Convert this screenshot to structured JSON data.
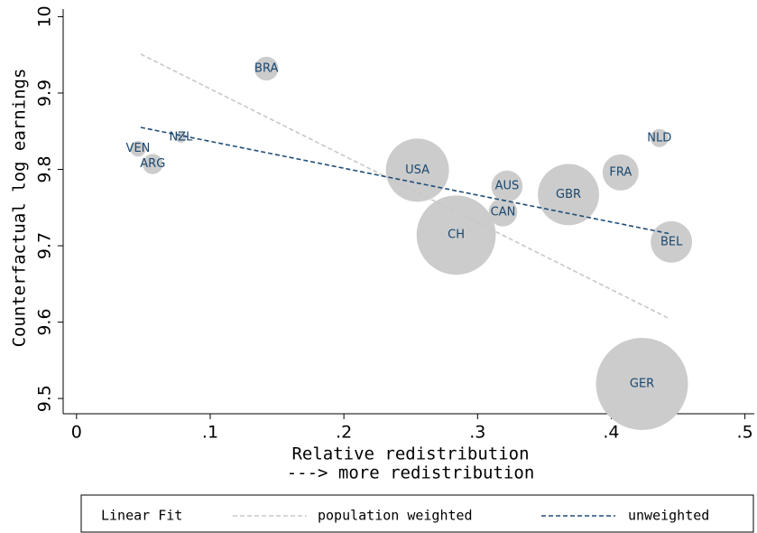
{
  "chart_data": {
    "type": "scatter",
    "ylabel": "Counterfactual log earnings",
    "xlabel": [
      "Relative redistribution",
      "---> more redistribution"
    ],
    "legend_title": "Linear Fit",
    "labels": [
      "BRA",
      "VEN",
      "NZL",
      "ARG",
      "USA",
      "AUS",
      "CAN",
      "CH",
      "GBR",
      "FRA",
      "NLD",
      "BEL",
      "GER"
    ],
    "x": [
      0.142,
      0.046,
      0.078,
      0.057,
      0.255,
      0.322,
      0.319,
      0.284,
      0.368,
      0.407,
      0.436,
      0.445,
      0.423
    ],
    "values": [
      9.932,
      9.827,
      9.842,
      9.807,
      9.799,
      9.778,
      9.744,
      9.714,
      9.767,
      9.796,
      9.841,
      9.705,
      9.519
    ],
    "sizes": [
      7,
      3,
      1.4,
      5,
      49,
      12,
      10,
      77,
      46,
      16,
      4,
      21,
      104
    ],
    "color": "#cccccc",
    "label_color": "#1a476f",
    "lines": [
      {
        "name": "population weighted",
        "color": "#c8c8c8",
        "x": [
          0.048,
          0.443
        ],
        "values": [
          9.951,
          9.605
        ]
      },
      {
        "name": "unweighted",
        "color": "#1f4e79",
        "x": [
          0.048,
          0.443
        ],
        "values": [
          9.855,
          9.716
        ]
      }
    ],
    "xlim": [
      -0.01,
      0.507
    ],
    "ylim": [
      9.48,
      10.01
    ],
    "xticks": [
      0,
      {
        "value": 0.1,
        "label": ".1"
      },
      {
        "value": 0.2,
        "label": ".2"
      },
      {
        "value": 0.3,
        "label": ".3"
      },
      {
        "value": 0.4,
        "label": ".4"
      },
      {
        "value": 0.5,
        "label": ".5"
      }
    ],
    "yticks": [
      9.5,
      9.6,
      9.7,
      9.8,
      9.9,
      10
    ]
  }
}
